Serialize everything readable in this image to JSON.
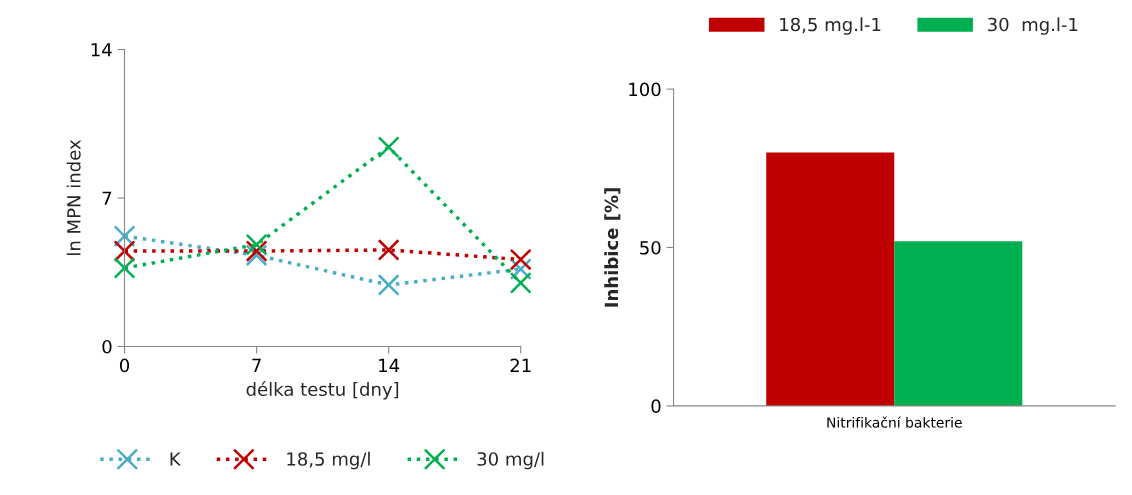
{
  "chart_data": [
    {
      "type": "line",
      "xlabel": "délka testu [dny]",
      "ylabel": "ln MPN index",
      "x": [
        0,
        7,
        14,
        21
      ],
      "xlim": [
        0,
        21
      ],
      "xticks": [
        0,
        7,
        14,
        21
      ],
      "ylim": [
        0,
        14
      ],
      "yticks": [
        0,
        7,
        14
      ],
      "grid": false,
      "legend": "bottom",
      "marker": "cross",
      "line_style": "dotted",
      "series": [
        {
          "name": "K",
          "color": "#4bacc6",
          "values": [
            5.2,
            4.3,
            2.9,
            3.65
          ]
        },
        {
          "name": "18,5 mg/l",
          "color": "#c00000",
          "values": [
            4.5,
            4.5,
            4.55,
            4.1
          ]
        },
        {
          "name": "30 mg/l",
          "color": "#00b050",
          "values": [
            3.7,
            4.8,
            9.4,
            3.0
          ]
        }
      ]
    },
    {
      "type": "bar",
      "ylabel": "Inhibice [%]",
      "categories": [
        "Nitrifikační bakterie"
      ],
      "ylim": [
        0,
        100
      ],
      "yticks": [
        0,
        50,
        100
      ],
      "grid": false,
      "legend": "top",
      "series": [
        {
          "name": "18,5 mg.l-1",
          "color": "#c00000",
          "values": [
            80
          ]
        },
        {
          "name": "30  mg.l-1",
          "color": "#00b050",
          "values": [
            52
          ]
        }
      ]
    }
  ]
}
